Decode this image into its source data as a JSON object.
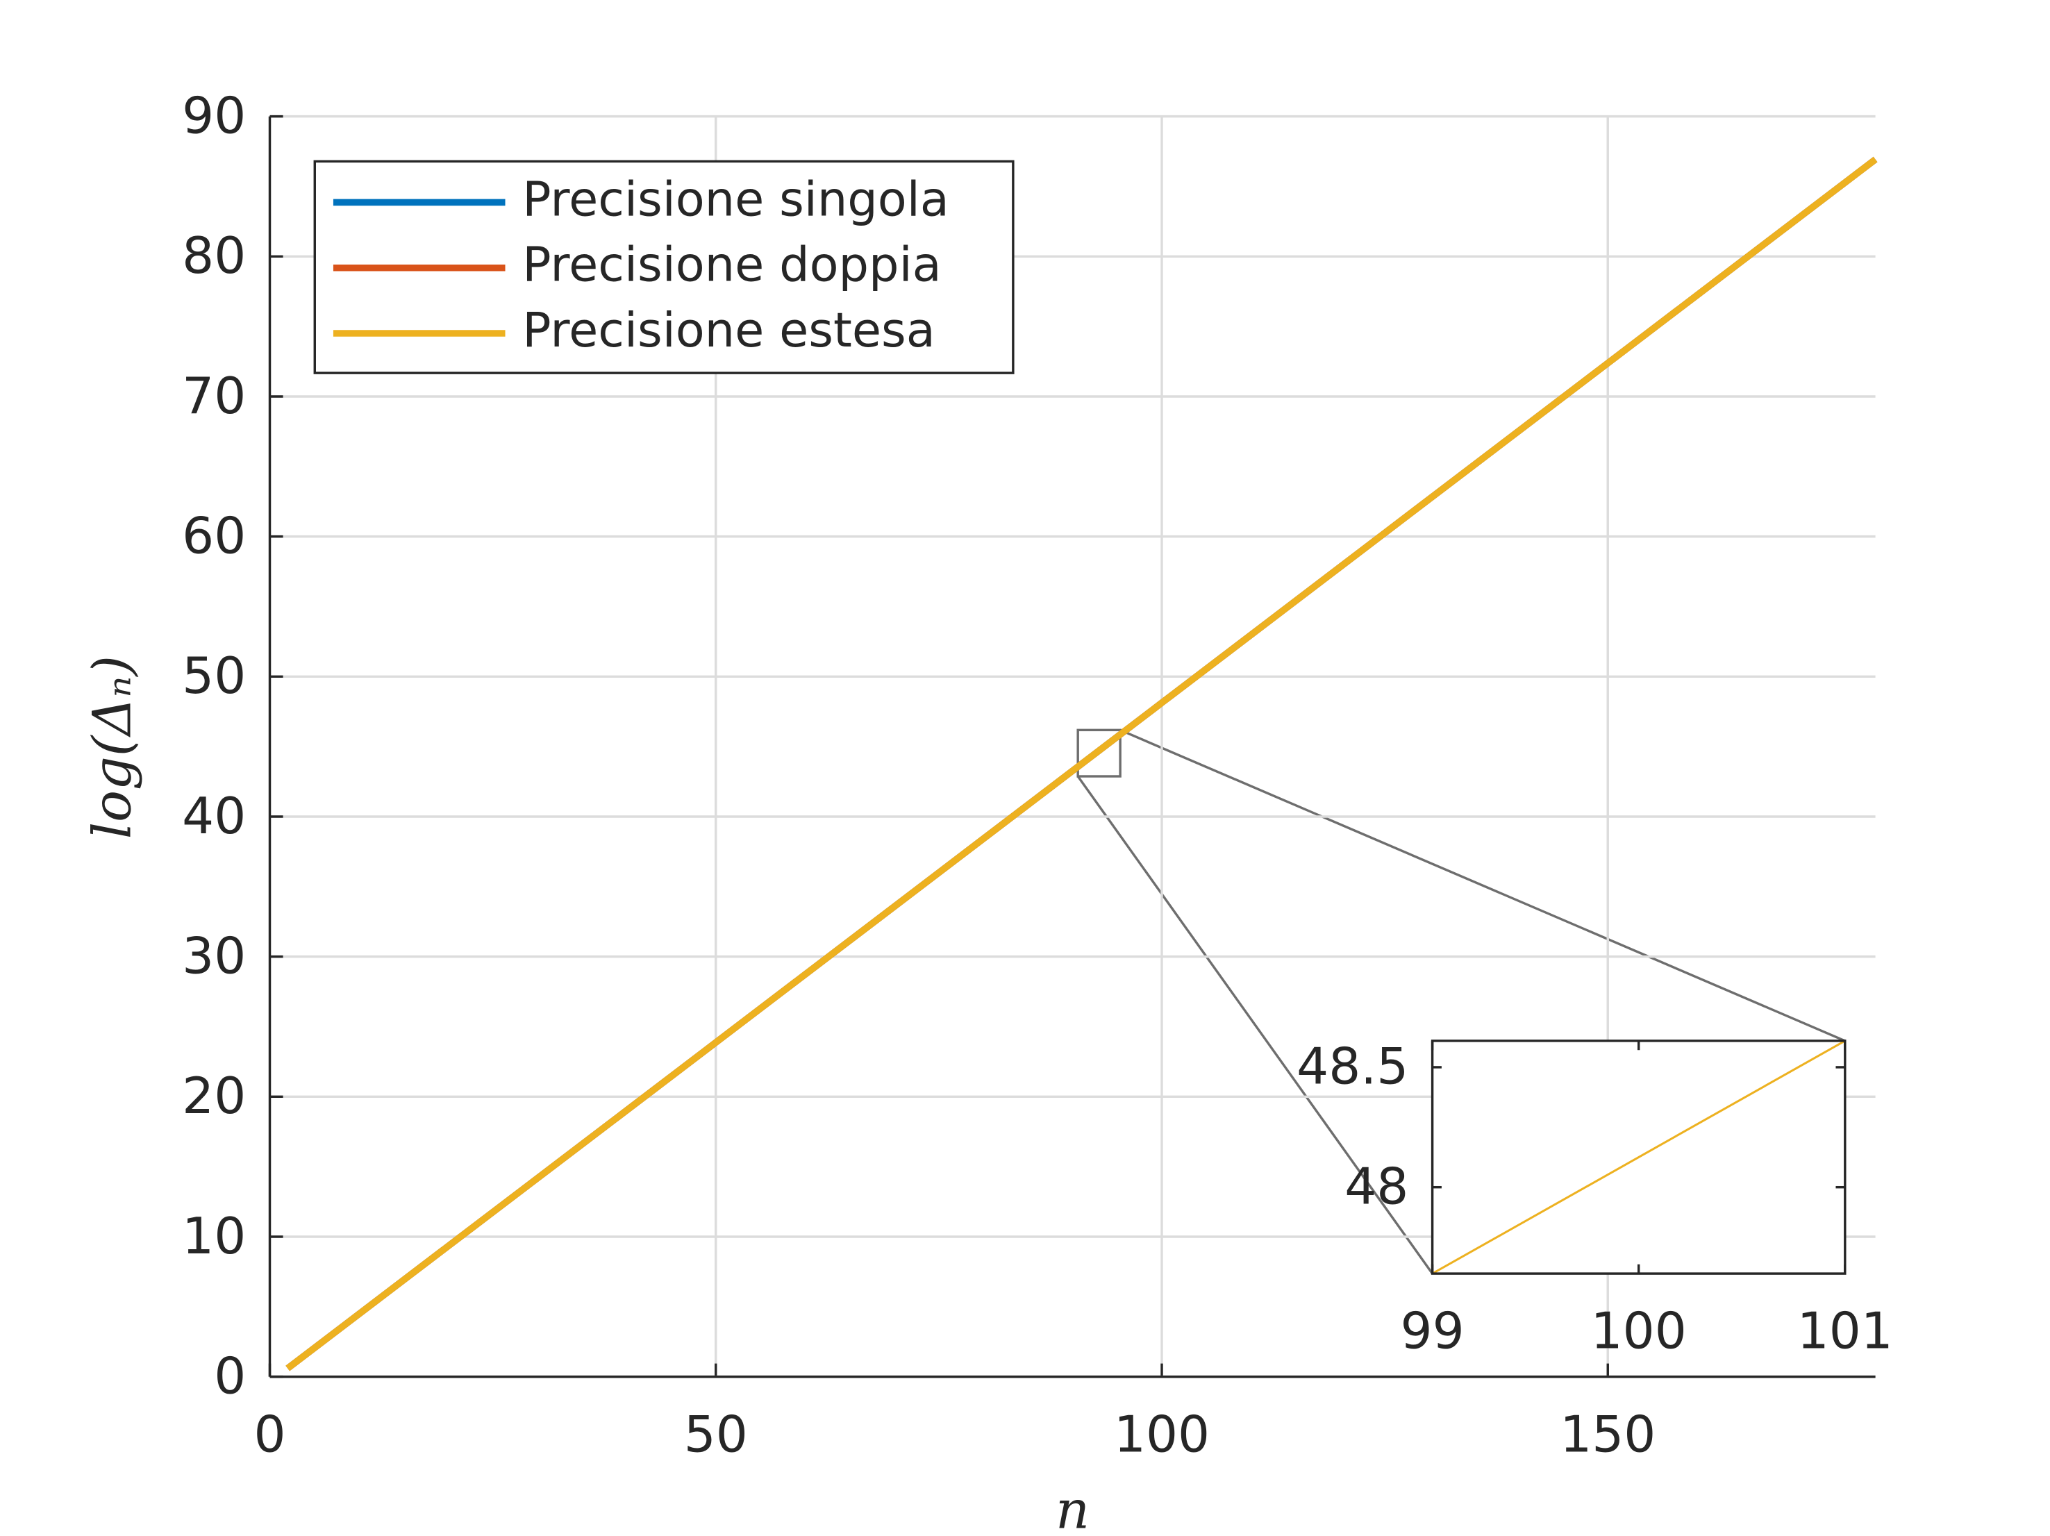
{
  "chart_data": [
    {
      "type": "line",
      "x_label": "n",
      "y_label": "log(Δₙ)",
      "x": [
        2,
        20,
        40,
        60,
        80,
        99,
        100,
        101,
        120,
        140,
        160,
        180
      ],
      "series": [
        {
          "name": "Precisione singola",
          "color": "#0072bd",
          "values": [
            0.6,
            9.33,
            19.02,
            28.72,
            38.42,
            47.64,
            48.13,
            48.61,
            57.83,
            67.53,
            77.23,
            86.93
          ]
        },
        {
          "name": "Precisione doppia",
          "color": "#d95319",
          "values": [
            0.6,
            9.33,
            19.02,
            28.72,
            38.42,
            47.64,
            48.13,
            48.61,
            57.83,
            67.53,
            77.23,
            86.93
          ]
        },
        {
          "name": "Precisione estesa",
          "color": "#edb120",
          "values": [
            0.6,
            9.33,
            19.02,
            28.72,
            38.42,
            47.64,
            48.13,
            48.61,
            57.83,
            67.53,
            77.23,
            86.93
          ]
        }
      ],
      "xlim": [
        0,
        180
      ],
      "ylim": [
        0,
        90
      ],
      "xticks": [
        0,
        50,
        100,
        150
      ],
      "yticks": [
        0,
        10,
        20,
        30,
        40,
        50,
        60,
        70,
        80,
        90
      ],
      "grid": true,
      "legend": "upper left"
    },
    {
      "type": "line",
      "x": [
        99,
        101
      ],
      "series": [
        {
          "color": "#edb120",
          "values": [
            47.64,
            48.61
          ]
        }
      ],
      "xlim": [
        99,
        101
      ],
      "ylim": [
        47.64,
        48.61
      ],
      "xticks": [
        99,
        100,
        101
      ],
      "yticks": [
        48,
        48.5
      ],
      "grid": false
    }
  ]
}
